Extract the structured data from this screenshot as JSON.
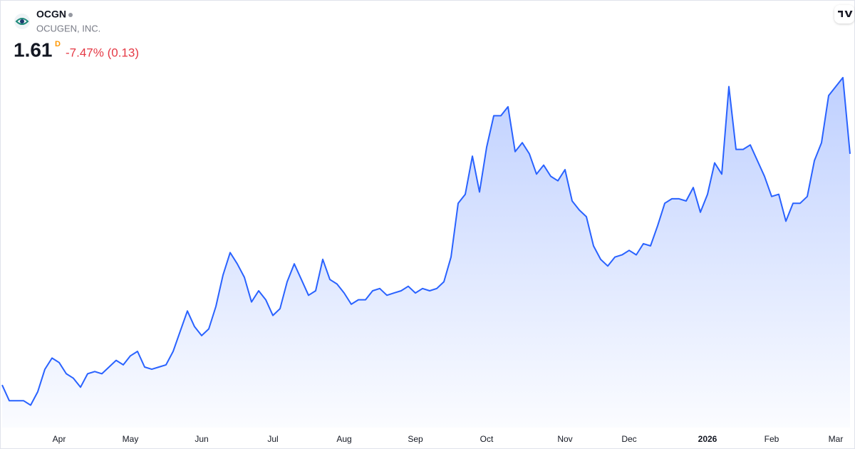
{
  "chart_data": {
    "type": "area",
    "title": "OCGN",
    "subtitle": "OCUGEN, INC.",
    "annotations": {
      "price": "1.61",
      "interval": "D",
      "change": "-7.47% (0.13)"
    },
    "categories": [
      null,
      null,
      null,
      null,
      null,
      null,
      null,
      null,
      "Apr",
      null,
      null,
      null,
      null,
      null,
      null,
      null,
      null,
      null,
      "May",
      null,
      null,
      null,
      null,
      null,
      null,
      null,
      null,
      null,
      "Jun",
      null,
      null,
      null,
      null,
      null,
      null,
      null,
      null,
      null,
      "Jul",
      null,
      null,
      null,
      null,
      null,
      null,
      null,
      null,
      null,
      "Aug",
      null,
      null,
      null,
      null,
      null,
      null,
      null,
      null,
      null,
      "Sep",
      null,
      null,
      null,
      null,
      null,
      null,
      null,
      null,
      null,
      "Oct",
      null,
      null,
      null,
      null,
      null,
      null,
      null,
      null,
      null,
      null,
      "Nov",
      null,
      null,
      null,
      null,
      null,
      null,
      null,
      null,
      "Dec",
      null,
      null,
      null,
      null,
      null,
      null,
      null,
      null,
      null,
      null,
      "2026",
      null,
      null,
      null,
      null,
      null,
      null,
      null,
      null,
      "Feb",
      null,
      null,
      null,
      null,
      null,
      null,
      null,
      null,
      "Mar",
      null,
      null
    ],
    "series": [
      {
        "name": "OCGN",
        "color": "#2962ff",
        "values": [
          0.58,
          0.51,
          0.51,
          0.51,
          0.49,
          0.55,
          0.65,
          0.7,
          0.68,
          0.63,
          0.61,
          0.57,
          0.63,
          0.64,
          0.63,
          0.66,
          0.69,
          0.67,
          0.71,
          0.73,
          0.66,
          0.65,
          0.66,
          0.67,
          0.73,
          0.82,
          0.91,
          0.84,
          0.8,
          0.83,
          0.93,
          1.07,
          1.17,
          1.12,
          1.06,
          0.95,
          1.0,
          0.96,
          0.89,
          0.92,
          1.04,
          1.12,
          1.05,
          0.98,
          1.0,
          1.14,
          1.05,
          1.03,
          0.99,
          0.94,
          0.96,
          0.96,
          1.0,
          1.01,
          0.98,
          0.99,
          1.0,
          1.02,
          0.99,
          1.01,
          1.0,
          1.01,
          1.04,
          1.15,
          1.39,
          1.43,
          1.6,
          1.44,
          1.64,
          1.78,
          1.78,
          1.82,
          1.62,
          1.66,
          1.61,
          1.52,
          1.56,
          1.51,
          1.49,
          1.54,
          1.4,
          1.36,
          1.33,
          1.2,
          1.14,
          1.11,
          1.15,
          1.16,
          1.18,
          1.16,
          1.21,
          1.2,
          1.29,
          1.39,
          1.41,
          1.41,
          1.4,
          1.46,
          1.35,
          1.43,
          1.57,
          1.52,
          1.91,
          1.63,
          1.63,
          1.65,
          1.58,
          1.51,
          1.42,
          1.43,
          1.31,
          1.39,
          1.39,
          1.42,
          1.58,
          1.66,
          1.87,
          1.91,
          1.95,
          1.61
        ]
      }
    ],
    "ylim": [
      0.39,
      2.01
    ]
  }
}
